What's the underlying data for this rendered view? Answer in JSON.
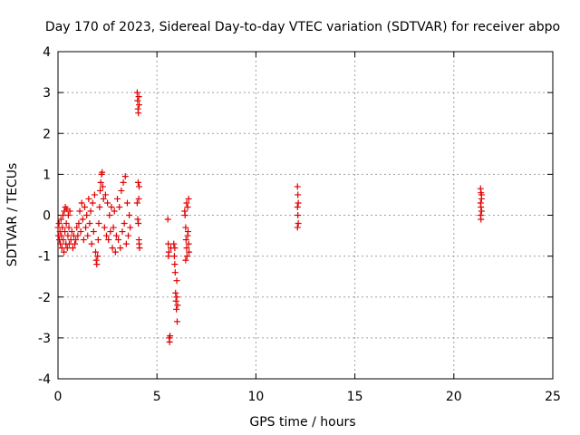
{
  "chart_data": {
    "type": "scatter",
    "title": "Day 170 of 2023, Sidereal Day-to-day VTEC variation (SDTVAR) for receiver abpo",
    "xlabel": "GPS time / hours",
    "ylabel": "SDTVAR / TECUs",
    "xlim": [
      0,
      25
    ],
    "ylim": [
      -4,
      4
    ],
    "xticks": [
      "0",
      "5",
      "10",
      "15",
      "20",
      "25"
    ],
    "yticks": [
      "-4",
      "-3",
      "-2",
      "-1",
      "0",
      "1",
      "2",
      "3",
      "4"
    ],
    "grid": true,
    "marker": "+",
    "series_color": "#e00000",
    "series": [
      {
        "values": [
          [
            0.0,
            -0.3
          ],
          [
            0.02,
            -0.5
          ],
          [
            0.05,
            -0.2
          ],
          [
            0.07,
            -0.6
          ],
          [
            0.1,
            -0.4
          ],
          [
            0.12,
            -0.7
          ],
          [
            0.15,
            -0.1
          ],
          [
            0.17,
            -0.5
          ],
          [
            0.2,
            -0.8
          ],
          [
            0.22,
            -0.3
          ],
          [
            0.25,
            0.0
          ],
          [
            0.27,
            -0.6
          ],
          [
            0.3,
            -0.9
          ],
          [
            0.32,
            0.1
          ],
          [
            0.35,
            -0.4
          ],
          [
            0.37,
            0.2
          ],
          [
            0.4,
            -0.7
          ],
          [
            0.42,
            -0.2
          ],
          [
            0.45,
            0.15
          ],
          [
            0.47,
            -0.8
          ],
          [
            0.5,
            -0.5
          ],
          [
            0.52,
            0.0
          ],
          [
            0.55,
            -0.3
          ],
          [
            0.57,
            -0.7
          ],
          [
            0.6,
            0.1
          ],
          [
            0.65,
            -0.6
          ],
          [
            0.7,
            -0.4
          ],
          [
            0.75,
            -0.8
          ],
          [
            0.8,
            -0.5
          ],
          [
            0.85,
            -0.7
          ],
          [
            0.9,
            -0.6
          ],
          [
            0.95,
            -0.3
          ],
          [
            1.0,
            -0.5
          ],
          [
            1.05,
            -0.2
          ],
          [
            1.1,
            0.1
          ],
          [
            1.15,
            -0.4
          ],
          [
            1.2,
            0.3
          ],
          [
            1.25,
            -0.1
          ],
          [
            1.3,
            -0.6
          ],
          [
            1.35,
            0.2
          ],
          [
            1.4,
            -0.3
          ],
          [
            1.45,
            0.0
          ],
          [
            1.5,
            -0.5
          ],
          [
            1.55,
            0.4
          ],
          [
            1.6,
            -0.2
          ],
          [
            1.65,
            0.1
          ],
          [
            1.7,
            -0.7
          ],
          [
            1.75,
            0.3
          ],
          [
            1.8,
            -0.4
          ],
          [
            1.85,
            0.5
          ],
          [
            1.9,
            -0.9
          ],
          [
            1.93,
            -1.1
          ],
          [
            1.96,
            -1.2
          ],
          [
            2.0,
            -1.0
          ],
          [
            2.03,
            -0.6
          ],
          [
            2.06,
            -0.2
          ],
          [
            2.1,
            0.2
          ],
          [
            2.13,
            0.6
          ],
          [
            2.16,
            0.8
          ],
          [
            2.2,
            1.0
          ],
          [
            2.23,
            1.05
          ],
          [
            2.26,
            0.7
          ],
          [
            2.3,
            0.4
          ],
          [
            2.35,
            -0.3
          ],
          [
            2.4,
            0.5
          ],
          [
            2.45,
            -0.5
          ],
          [
            2.5,
            0.3
          ],
          [
            2.55,
            -0.6
          ],
          [
            2.6,
            0.0
          ],
          [
            2.65,
            -0.4
          ],
          [
            2.7,
            0.2
          ],
          [
            2.75,
            -0.8
          ],
          [
            2.8,
            -0.3
          ],
          [
            2.85,
            0.1
          ],
          [
            2.9,
            -0.9
          ],
          [
            2.95,
            -0.5
          ],
          [
            3.0,
            0.4
          ],
          [
            3.05,
            -0.6
          ],
          [
            3.1,
            0.2
          ],
          [
            3.15,
            -0.8
          ],
          [
            3.2,
            0.6
          ],
          [
            3.25,
            -0.4
          ],
          [
            3.3,
            0.8
          ],
          [
            3.35,
            -0.2
          ],
          [
            3.4,
            0.95
          ],
          [
            3.45,
            -0.7
          ],
          [
            3.5,
            0.3
          ],
          [
            3.55,
            -0.5
          ],
          [
            3.6,
            0.0
          ],
          [
            3.65,
            -0.3
          ],
          [
            4.0,
            3.0
          ],
          [
            4.02,
            2.8
          ],
          [
            4.04,
            2.6
          ],
          [
            4.06,
            2.5
          ],
          [
            4.08,
            2.9
          ],
          [
            4.1,
            2.7
          ],
          [
            4.05,
            0.8
          ],
          [
            4.08,
            0.4
          ],
          [
            4.1,
            0.7
          ],
          [
            4.03,
            -0.1
          ],
          [
            4.06,
            -0.2
          ],
          [
            4.09,
            -0.6
          ],
          [
            4.12,
            -0.8
          ],
          [
            4.0,
            0.3
          ],
          [
            4.1,
            -0.7
          ],
          [
            5.55,
            -0.1
          ],
          [
            5.57,
            -0.7
          ],
          [
            5.6,
            -0.9
          ],
          [
            5.62,
            -3.0
          ],
          [
            5.64,
            -3.1
          ],
          [
            5.66,
            -2.95
          ],
          [
            5.7,
            -0.8
          ],
          [
            5.58,
            -1.0
          ],
          [
            5.85,
            -0.7
          ],
          [
            5.88,
            -1.0
          ],
          [
            5.9,
            -1.2
          ],
          [
            5.92,
            -1.4
          ],
          [
            5.94,
            -1.9
          ],
          [
            5.96,
            -2.1
          ],
          [
            5.98,
            -2.3
          ],
          [
            6.0,
            -2.0
          ],
          [
            6.02,
            -2.6
          ],
          [
            6.04,
            -2.2
          ],
          [
            5.9,
            -0.8
          ],
          [
            6.0,
            -1.6
          ],
          [
            6.4,
            0.1
          ],
          [
            6.42,
            0.0
          ],
          [
            6.45,
            -0.3
          ],
          [
            6.47,
            -0.6
          ],
          [
            6.5,
            -0.8
          ],
          [
            6.52,
            -1.0
          ],
          [
            6.55,
            0.2
          ],
          [
            6.57,
            -0.4
          ],
          [
            6.6,
            -0.7
          ],
          [
            6.62,
            -0.9
          ],
          [
            6.5,
            0.3
          ],
          [
            6.6,
            0.4
          ],
          [
            6.45,
            -1.1
          ],
          [
            6.55,
            -0.5
          ],
          [
            12.1,
            0.7
          ],
          [
            12.12,
            0.5
          ],
          [
            12.14,
            0.3
          ],
          [
            12.1,
            0.2
          ],
          [
            12.12,
            0.0
          ],
          [
            12.14,
            -0.2
          ],
          [
            12.1,
            -0.3
          ],
          [
            21.35,
            0.65
          ],
          [
            21.37,
            0.55
          ],
          [
            21.4,
            0.4
          ],
          [
            21.35,
            0.3
          ],
          [
            21.37,
            0.2
          ],
          [
            21.4,
            0.1
          ],
          [
            21.35,
            0.0
          ],
          [
            21.37,
            -0.1
          ],
          [
            21.4,
            0.5
          ]
        ]
      }
    ]
  }
}
